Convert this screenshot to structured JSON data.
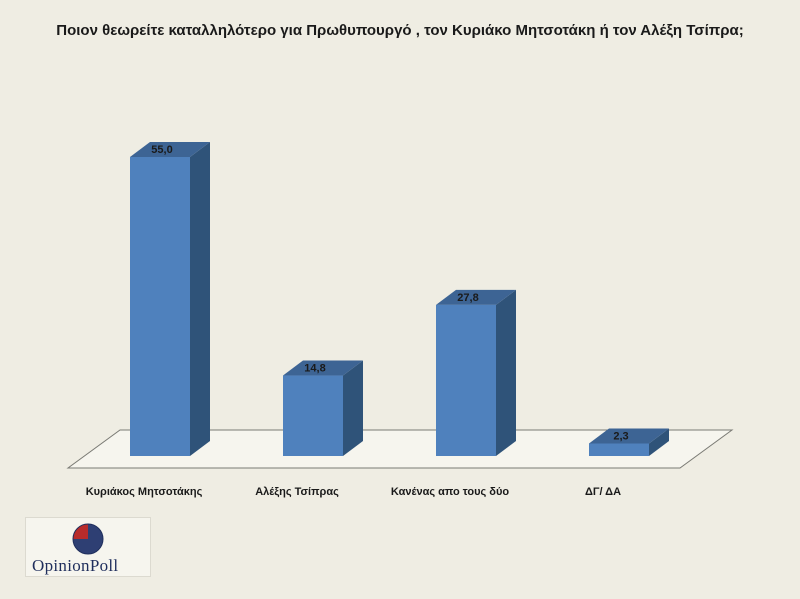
{
  "chart_data": {
    "type": "bar",
    "title": "Ποιον θεωρείτε καταλληλότερο για Πρωθυπουργό , τον Κυριάκο Μητσοτάκη ή τον Αλέξη Τσίπρα;",
    "categories": [
      "Κυριάκος Μητσοτάκης",
      "Αλέξης Τσίπρας",
      "Κανένας απο τους δύο",
      "ΔΓ/ ΔΑ"
    ],
    "values": [
      55.0,
      14.8,
      27.8,
      2.3
    ],
    "value_labels": [
      "55,0",
      "14,8",
      "27,8",
      "2,3"
    ],
    "ylim": [
      0,
      60
    ],
    "grid": false,
    "legend": "none",
    "colors": {
      "front": "#4f81bd",
      "side": "#2f5379",
      "top": "#3d6494",
      "text": "#1a1a1a"
    }
  },
  "logo": {
    "text": "OpinionPoll",
    "colors": {
      "red": "#b82b2b",
      "navy": "#1f2e5c"
    }
  }
}
